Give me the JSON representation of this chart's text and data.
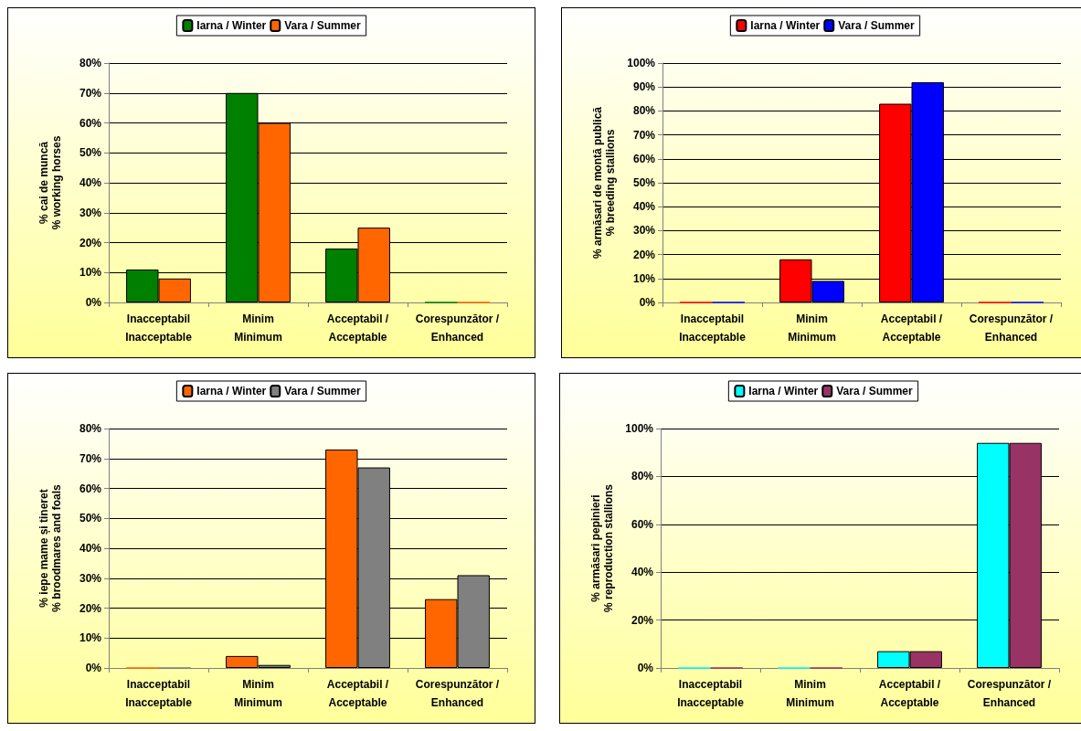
{
  "chart_data": [
    {
      "type": "bar",
      "ylabel": "% cai de muncă\n% working horses",
      "categories": [
        "Inacceptabil\nInacceptable",
        "Minim\nMinimum",
        "Acceptabil /\nAcceptable",
        "Corespunzător /\nEnhanced"
      ],
      "series": [
        {
          "name": "Iarna / Winter",
          "color": "#008000",
          "values": [
            11,
            70,
            18,
            0
          ]
        },
        {
          "name": "Vara / Summer",
          "color": "#ff6600",
          "values": [
            8,
            60,
            25,
            0
          ]
        }
      ],
      "ylim": [
        0,
        80
      ],
      "yticks": [
        {
          "value": 0,
          "label": "0%"
        },
        {
          "value": 10,
          "label": "10%"
        },
        {
          "value": 20,
          "label": "20%"
        },
        {
          "value": 30,
          "label": "30%"
        },
        {
          "value": 40,
          "label": "40%"
        },
        {
          "value": 50,
          "label": "50%"
        },
        {
          "value": 60,
          "label": "60%"
        },
        {
          "value": 70,
          "label": "70%"
        },
        {
          "value": 80,
          "label": "80%"
        }
      ],
      "grid": "y",
      "legend": "top"
    },
    {
      "type": "bar",
      "ylabel": "% armăsari de montă publică\n% breeding stallions",
      "categories": [
        "Inacceptabil\nInacceptable",
        "Minim\nMinimum",
        "Acceptabil /\nAcceptable",
        "Corespunzător /\nEnhanced"
      ],
      "series": [
        {
          "name": "Iarna / Winter",
          "color": "#ff0000",
          "values": [
            0,
            18,
            83,
            0
          ]
        },
        {
          "name": "Vara / Summer",
          "color": "#0000ff",
          "values": [
            0,
            9,
            92,
            0
          ]
        }
      ],
      "ylim": [
        0,
        100
      ],
      "yticks": [
        {
          "value": 0,
          "label": "0%"
        },
        {
          "value": 10,
          "label": "10%"
        },
        {
          "value": 20,
          "label": "20%"
        },
        {
          "value": 30,
          "label": "30%"
        },
        {
          "value": 40,
          "label": "40%"
        },
        {
          "value": 50,
          "label": "50%"
        },
        {
          "value": 60,
          "label": "60%"
        },
        {
          "value": 70,
          "label": "70%"
        },
        {
          "value": 80,
          "label": "80%"
        },
        {
          "value": 90,
          "label": "90%"
        },
        {
          "value": 100,
          "label": "100%"
        }
      ],
      "grid": "y",
      "legend": "top"
    },
    {
      "type": "bar",
      "ylabel": "% iepe mame și tineret\n% broodmares and foals",
      "categories": [
        "Inacceptabil\nInacceptable",
        "Minim\nMinimum",
        "Acceptabil /\nAcceptable",
        "Corespunzător /\nEnhanced"
      ],
      "series": [
        {
          "name": "Iarna / Winter",
          "color": "#ff6600",
          "values": [
            0,
            4,
            73,
            23
          ]
        },
        {
          "name": "Vara / Summer",
          "color": "#808080",
          "values": [
            0,
            1,
            67,
            31
          ]
        }
      ],
      "ylim": [
        0,
        80
      ],
      "yticks": [
        {
          "value": 0,
          "label": "0%"
        },
        {
          "value": 10,
          "label": "10%"
        },
        {
          "value": 20,
          "label": "20%"
        },
        {
          "value": 30,
          "label": "30%"
        },
        {
          "value": 40,
          "label": "40%"
        },
        {
          "value": 50,
          "label": "50%"
        },
        {
          "value": 60,
          "label": "60%"
        },
        {
          "value": 70,
          "label": "70%"
        },
        {
          "value": 80,
          "label": "80%"
        }
      ],
      "grid": "y",
      "legend": "top"
    },
    {
      "type": "bar",
      "ylabel": "% armăsari pepinieri\n% reproduction stallions",
      "categories": [
        "Inacceptabil\nInacceptable",
        "Minim\nMinimum",
        "Acceptabil /\nAcceptable",
        "Corespunzător /\nEnhanced"
      ],
      "series": [
        {
          "name": "Iarna / Winter",
          "color": "#00ffff",
          "values": [
            0,
            0,
            7,
            94
          ]
        },
        {
          "name": "Vara / Summer",
          "color": "#993366",
          "values": [
            0,
            0,
            7,
            94
          ]
        }
      ],
      "ylim": [
        0,
        100
      ],
      "yticks": [
        {
          "value": 0,
          "label": "0%"
        },
        {
          "value": 20,
          "label": "20%"
        },
        {
          "value": 40,
          "label": "40%"
        },
        {
          "value": 60,
          "label": "60%"
        },
        {
          "value": 80,
          "label": "80%"
        },
        {
          "value": 100,
          "label": "100%"
        }
      ],
      "grid": "y",
      "legend": "top"
    }
  ]
}
